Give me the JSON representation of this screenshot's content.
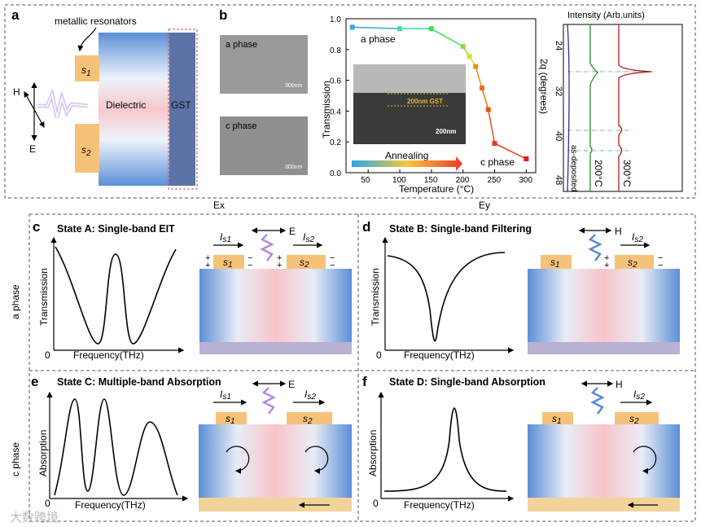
{
  "panels": {
    "a": {
      "label": "a",
      "resonators": "metallic resonators",
      "s1": "s",
      "s1_sub": "1",
      "s2": "s",
      "s2_sub": "2",
      "dielectric": "Dielectric",
      "gst": "GST",
      "h": "H",
      "e": "E"
    },
    "b": {
      "label": "b",
      "sem_a": "a phase",
      "sem_c": "c phase",
      "scale": "300nm",
      "inset_gst": "200nm GST",
      "inset_scale": "200nm",
      "annealing": "Annealing",
      "a_phase": "a phase",
      "c_phase": "c phase"
    },
    "xrd": {
      "title": "Intensity (Arb.units)",
      "ylabel": "2q (degrees)",
      "ticks": [
        "24",
        "32",
        "40",
        "48"
      ],
      "curves": [
        "as-deposited",
        "200°C",
        "300°C"
      ]
    },
    "c": {
      "label": "c",
      "title": "State A: Single-band EIT",
      "ylabel": "Transmission",
      "xlabel": "Frequency(THz)",
      "zero": "0",
      "field": "E",
      "is1": "I",
      "is1_sub": "s1",
      "is2": "I",
      "is2_sub": "s2"
    },
    "d": {
      "label": "d",
      "title": "State B: Single-band Filtering",
      "ylabel": "Transmission",
      "xlabel": "Frequency(THz)",
      "zero": "0",
      "field": "H",
      "is2": "I",
      "is2_sub": "s2"
    },
    "e": {
      "label": "e",
      "title": "State C: Multiple-band Absorption",
      "ylabel": "Absorption",
      "xlabel": "Frequency(THz)",
      "zero": "0",
      "field": "E",
      "is1": "I",
      "is1_sub": "s1",
      "is2": "I",
      "is2_sub": "s2"
    },
    "f": {
      "label": "f",
      "title": "State D: Single-band Absorption",
      "ylabel": "Absorption",
      "xlabel": "Frequency(THz)",
      "zero": "0",
      "field": "H",
      "is2": "I",
      "is2_sub": "s2"
    }
  },
  "columns": {
    "ex": "Ex",
    "ey": "Ey"
  },
  "rows": {
    "a_phase": "a phase",
    "c_phase": "c phase"
  },
  "watermark": "大数跨境",
  "colors": {
    "resonator": "#f6c27a",
    "gst": "#5a72a6",
    "dielectric_edge": "#5b8fd6",
    "dielectric_mid": "#f8c8cc",
    "wave": "#b48be0"
  },
  "chart_data": {
    "type": "line",
    "xlabel": "Temperature (°C)",
    "ylabel": "Transmission",
    "xlim": [
      15,
      315
    ],
    "ylim": [
      0,
      1.0
    ],
    "xticks": [
      "50",
      "100",
      "150",
      "200",
      "250",
      "300"
    ],
    "yticks": [
      "0.0",
      "0.2",
      "0.4",
      "0.6",
      "0.8",
      "1.0"
    ],
    "x": [
      25,
      100,
      150,
      200,
      210,
      220,
      230,
      240,
      250,
      300
    ],
    "y": [
      0.945,
      0.935,
      0.935,
      0.82,
      0.755,
      0.69,
      0.55,
      0.41,
      0.19,
      0.09
    ]
  }
}
